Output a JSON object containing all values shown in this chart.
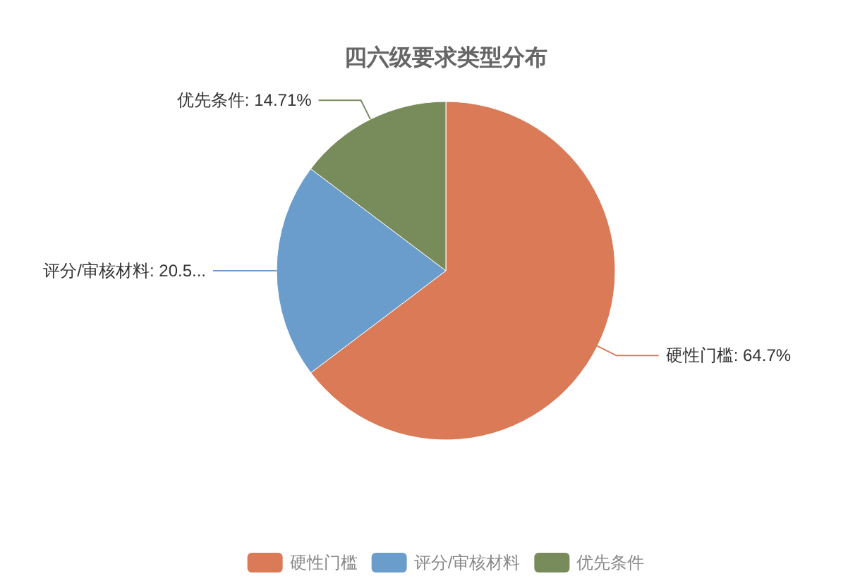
{
  "chart_data": {
    "type": "pie",
    "title": "四六级要求类型分布",
    "categories": [
      "硬性门槛",
      "评分/审核材料",
      "优先条件"
    ],
    "values": [
      64.7,
      20.59,
      14.71
    ],
    "colors": [
      "#da7a57",
      "#6a9ccc",
      "#788b5b"
    ],
    "value_labels": [
      "硬性门槛: 64.7%",
      "评分/审核材料: 20.5...",
      "优先条件: 14.71%"
    ],
    "legend": "bottom"
  }
}
